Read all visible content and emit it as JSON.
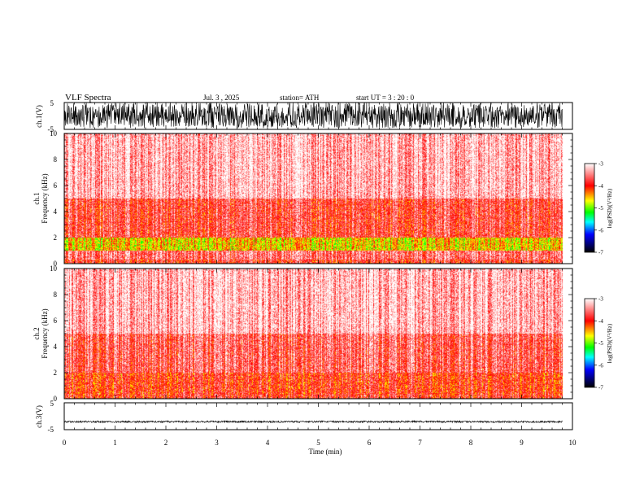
{
  "header": {
    "title": "VLF  Spectra",
    "date": "Jul.  3  , 2025",
    "station": "station= ATH",
    "start": "start  UT  =    3  : 20 : 0"
  },
  "chart_data": [
    {
      "type": "line",
      "panel": "ch1-waveform",
      "ylabel": "ch.1(V)",
      "ylim": [
        -5,
        5
      ],
      "ytick_labels": [
        "5",
        "-5"
      ],
      "x_range_min": [
        0,
        9.8
      ],
      "amplitude_typical": [
        -4.5,
        5
      ],
      "color": "#000000"
    },
    {
      "type": "heatmap",
      "panel": "ch1-spectrogram",
      "ylabel": "ch.1\nFrequency (kHz)",
      "ylim": [
        0,
        10
      ],
      "ytick_labels": [
        "0",
        "2",
        "4",
        "6",
        "8",
        "10"
      ],
      "x_range_min": [
        0,
        9.8
      ],
      "bands_khz": [
        {
          "from": 0,
          "to": 0.3,
          "level": -3.9
        },
        {
          "from": 0.3,
          "to": 1.0,
          "level": -3.6
        },
        {
          "from": 1.0,
          "to": 2.0,
          "level": -4.6
        },
        {
          "from": 2.0,
          "to": 5.0,
          "level": -3.8
        },
        {
          "from": 5.0,
          "to": 10,
          "level": -3.3
        }
      ],
      "colorbar": {
        "label": "log(PSD)(V²/Hz)",
        "range": [
          -7,
          -3
        ],
        "tick_labels": [
          "-3",
          "-4",
          "-5",
          "-6",
          "-7"
        ],
        "colors": [
          "#ffffff",
          "#ff0000",
          "#ffff00",
          "#00ff00",
          "#00ffff",
          "#0000ff",
          "#000000"
        ]
      }
    },
    {
      "type": "heatmap",
      "panel": "ch2-spectrogram",
      "ylabel": "ch.2\nFrequency (kHz)",
      "ylim": [
        0,
        10
      ],
      "ytick_labels": [
        "0",
        "2",
        "4",
        "6",
        "8",
        "10"
      ],
      "x_range_min": [
        0,
        9.8
      ],
      "bands_khz": [
        {
          "from": 0,
          "to": 0.4,
          "level": -3.9
        },
        {
          "from": 0.4,
          "to": 2.0,
          "level": -4.0
        },
        {
          "from": 2.0,
          "to": 5.0,
          "level": -3.7
        },
        {
          "from": 5.0,
          "to": 10,
          "level": -3.3
        }
      ],
      "colorbar": {
        "label": "log(PSD)(V²/Hz)",
        "range": [
          -7,
          -3
        ],
        "tick_labels": [
          "-3",
          "-4",
          "-5",
          "-6",
          "-7"
        ],
        "colors": [
          "#ffffff",
          "#ff0000",
          "#ffff00",
          "#00ff00",
          "#00ffff",
          "#0000ff",
          "#000000"
        ]
      }
    },
    {
      "type": "line",
      "panel": "ch3-waveform",
      "ylabel": "ch.3(V)",
      "ylim": [
        -5,
        5
      ],
      "ytick_labels": [
        "5",
        "-5"
      ],
      "x_range_min": [
        0,
        9.8
      ],
      "amplitude_typical": [
        -2.4,
        -1.7
      ],
      "color": "#000000"
    },
    {
      "type": "axis",
      "panel": "time-axis",
      "xlabel": "Time  (min)",
      "xlim": [
        0,
        10
      ],
      "xtick_labels": [
        "0",
        "1",
        "2",
        "3",
        "4",
        "5",
        "6",
        "7",
        "8",
        "9",
        "10"
      ]
    }
  ]
}
